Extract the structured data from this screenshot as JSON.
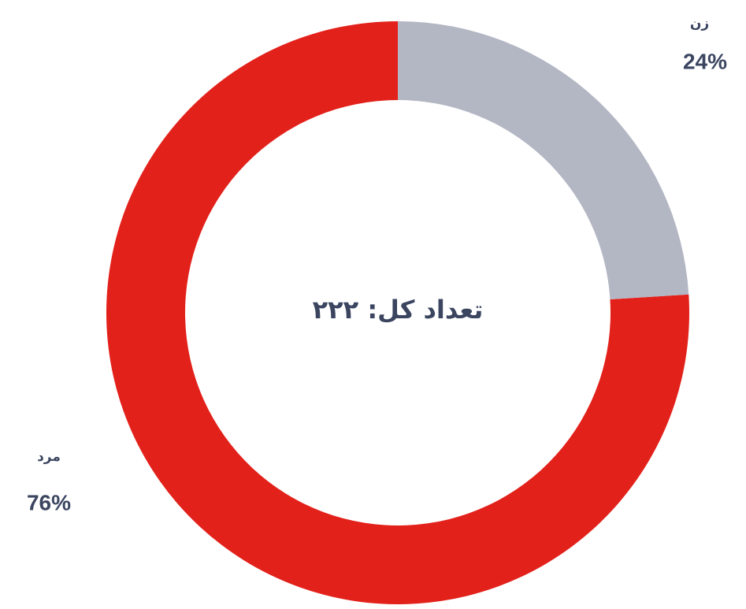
{
  "chart_data": {
    "type": "donut",
    "center_text": "تعداد کل: ۲۲۲",
    "categories": [
      "زن",
      "مرد"
    ],
    "values": [
      24,
      76
    ],
    "value_labels": [
      "24%",
      "76%"
    ],
    "colors": [
      "#b3b6c3",
      "#e3211b"
    ]
  }
}
